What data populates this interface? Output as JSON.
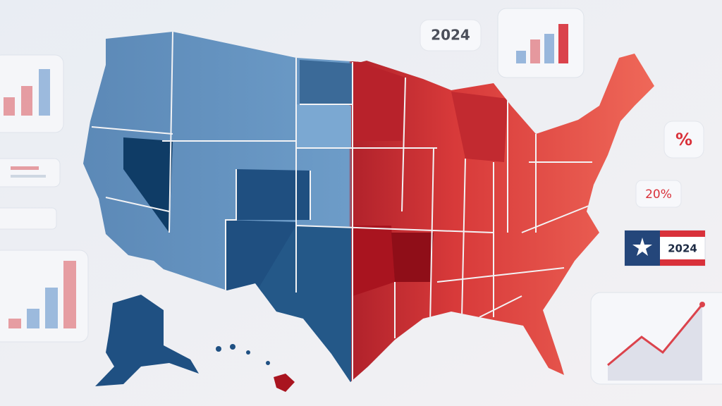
{
  "badges": {
    "year_top": "2024",
    "percent_symbol": "%",
    "percent_value": "20%",
    "flag_year": "2024"
  }
}
